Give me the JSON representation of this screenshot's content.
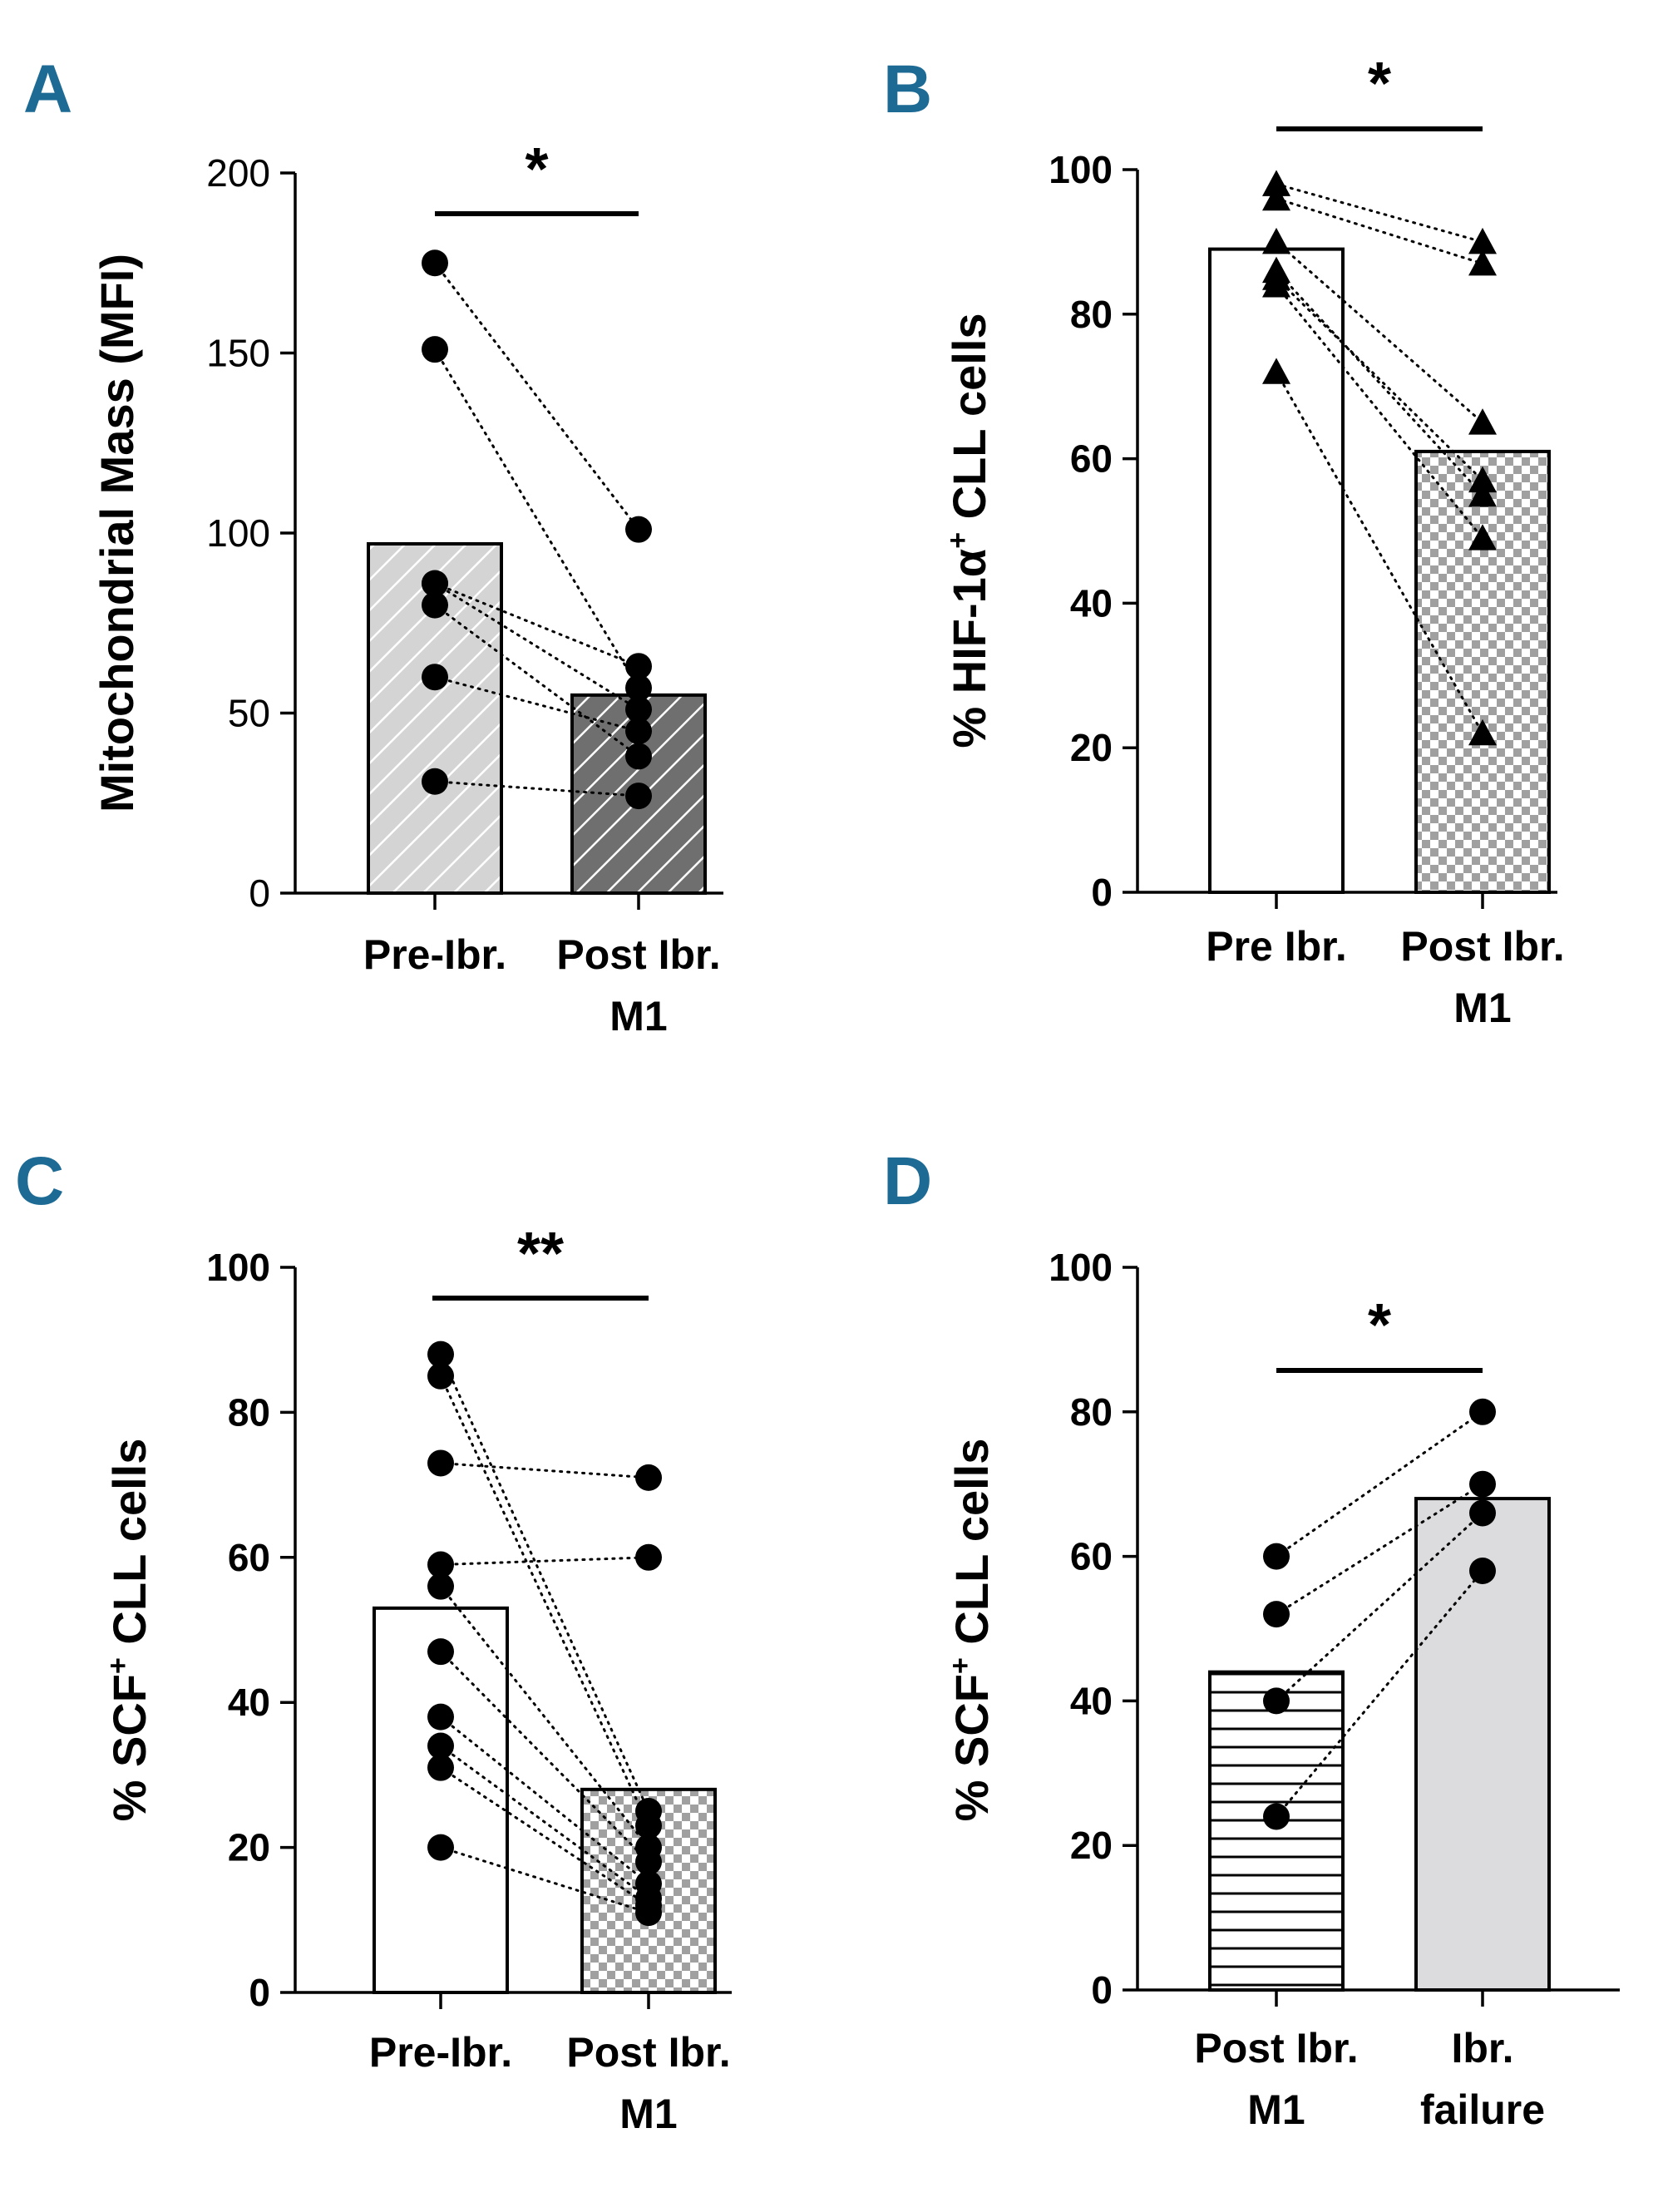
{
  "chart_data": [
    {
      "panel": "A",
      "type": "bar",
      "ylabel": "Mitochondrial Mass (MFI)",
      "ylim": [
        0,
        200
      ],
      "yticks": [
        "0",
        "50",
        "100",
        "150",
        "200"
      ],
      "categories": [
        "Pre-Ibr.",
        "Post Ibr.\nM1"
      ],
      "bar_values": [
        97,
        55
      ],
      "bar_fills": [
        "hatch-light",
        "hatch-dark"
      ],
      "marker": "circle",
      "pairs": [
        [
          175,
          101
        ],
        [
          151,
          57
        ],
        [
          86,
          51
        ],
        [
          80,
          38
        ],
        [
          60,
          45
        ],
        [
          31,
          27
        ],
        [
          86,
          63
        ]
      ],
      "significance": "*"
    },
    {
      "panel": "B",
      "type": "bar",
      "ylabel": "% HIF-1α+ CLL cells",
      "ylim": [
        0,
        100
      ],
      "yticks": [
        "0",
        "20",
        "40",
        "60",
        "80",
        "100"
      ],
      "categories": [
        "Pre Ibr.",
        "Post Ibr.\nM1"
      ],
      "bar_values": [
        89,
        61
      ],
      "bar_fills": [
        "white",
        "checker"
      ],
      "marker": "triangle",
      "pairs": [
        [
          98,
          90
        ],
        [
          96,
          87
        ],
        [
          90,
          65
        ],
        [
          85,
          57
        ],
        [
          84,
          49
        ],
        [
          72,
          22
        ],
        [
          86,
          55
        ]
      ],
      "significance": "*"
    },
    {
      "panel": "C",
      "type": "bar",
      "ylabel": "% SCF+ CLL cells",
      "ylim": [
        0,
        100
      ],
      "yticks": [
        "0",
        "20",
        "40",
        "60",
        "80",
        "100"
      ],
      "categories": [
        "Pre-Ibr.",
        "Post Ibr.\nM1"
      ],
      "bar_values": [
        53,
        28
      ],
      "bar_fills": [
        "white",
        "checker"
      ],
      "marker": "circle",
      "pairs": [
        [
          88,
          25
        ],
        [
          85,
          23
        ],
        [
          73,
          71
        ],
        [
          59,
          60
        ],
        [
          56,
          20
        ],
        [
          47,
          18
        ],
        [
          38,
          15
        ],
        [
          34,
          13
        ],
        [
          31,
          12
        ],
        [
          20,
          11
        ]
      ],
      "significance": "**"
    },
    {
      "panel": "D",
      "type": "bar",
      "ylabel": "% SCF+ CLL cells",
      "ylim": [
        0,
        100
      ],
      "yticks": [
        "0",
        "20",
        "40",
        "60",
        "80",
        "100"
      ],
      "categories": [
        "Post Ibr.\nM1",
        "Ibr.\nfailure"
      ],
      "bar_values": [
        44,
        68
      ],
      "bar_fills": [
        "hstripes",
        "grey"
      ],
      "marker": "circle",
      "pairs": [
        [
          60,
          80
        ],
        [
          52,
          70
        ],
        [
          40,
          66
        ],
        [
          24,
          58
        ]
      ],
      "significance": "*"
    }
  ]
}
